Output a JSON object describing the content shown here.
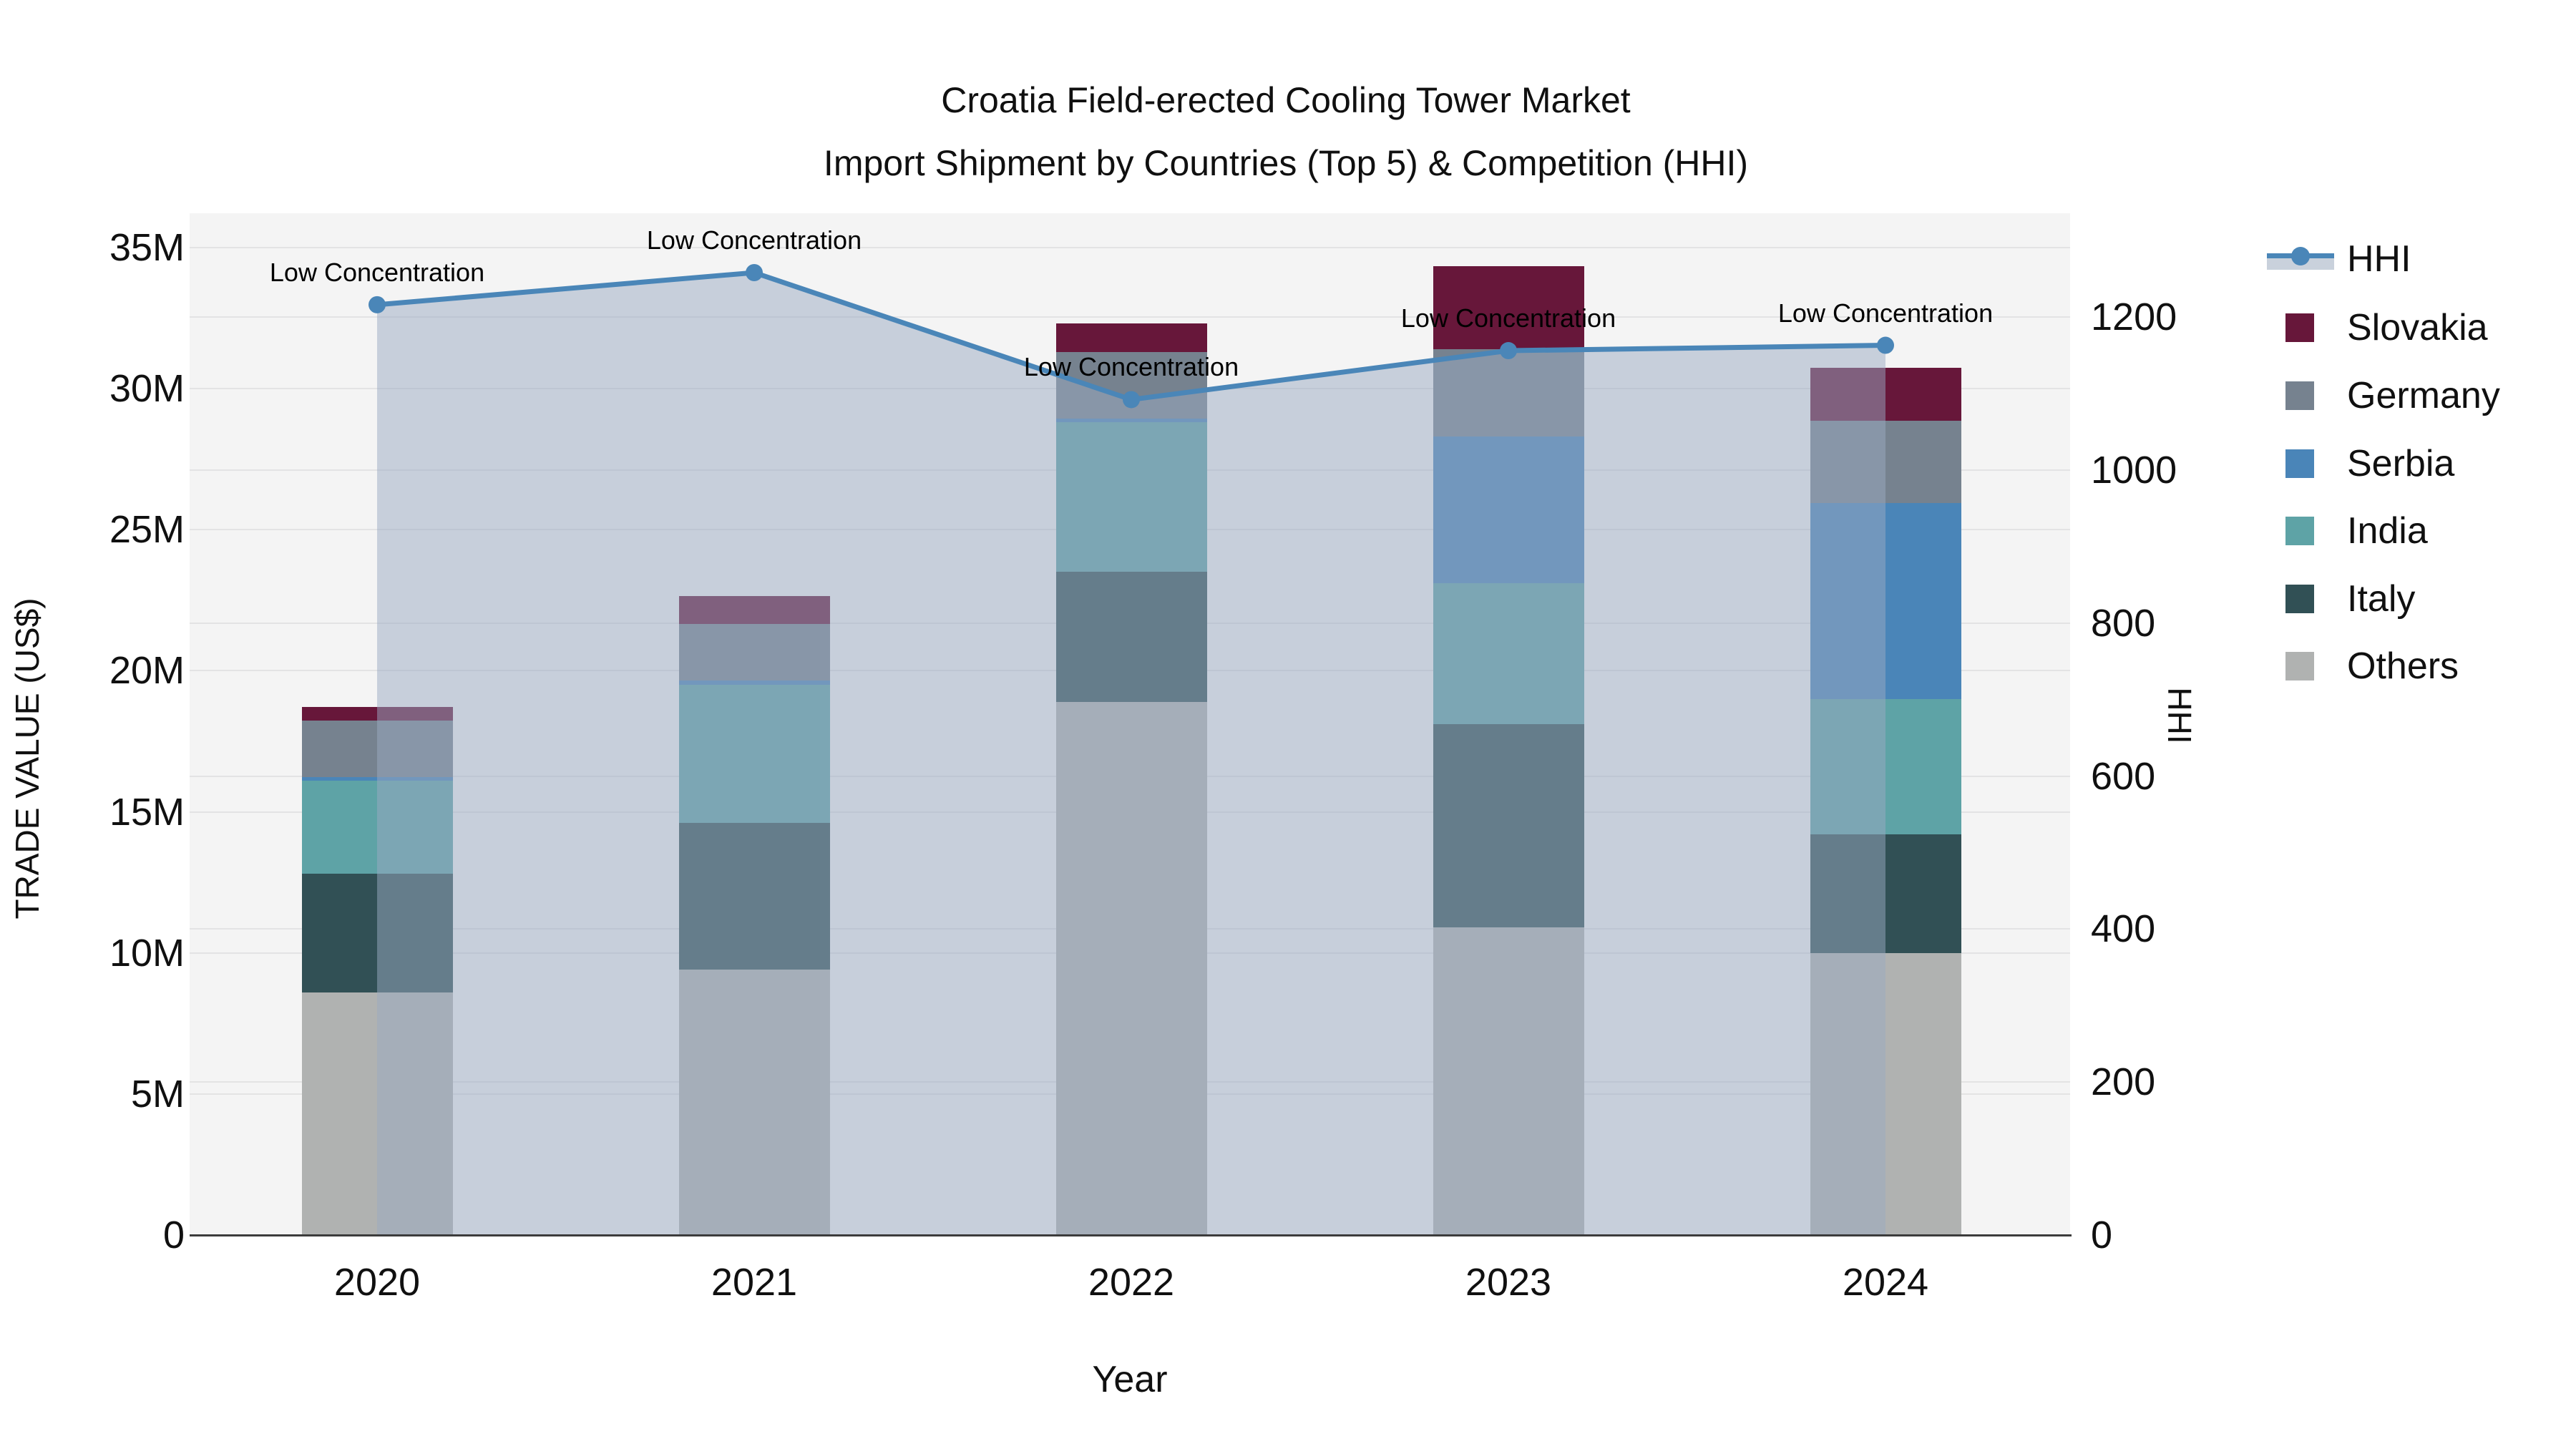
{
  "title": {
    "line1": "Croatia Field-erected Cooling Tower Market",
    "line2": "Import Shipment by Countries (Top 5) & Competition (HHI)"
  },
  "axes": {
    "x": {
      "title": "Year",
      "categories": [
        "2020",
        "2021",
        "2022",
        "2023",
        "2024"
      ]
    },
    "y_left": {
      "title": "TRADE VALUE (US$)",
      "tick_labels": [
        "0",
        "5M",
        "10M",
        "15M",
        "20M",
        "25M",
        "30M",
        "35M"
      ],
      "tick_values": [
        0,
        5,
        10,
        15,
        20,
        25,
        30,
        35
      ]
    },
    "y_right": {
      "title": "HHI",
      "tick_labels": [
        "0",
        "200",
        "400",
        "600",
        "800",
        "1000",
        "1200"
      ],
      "tick_values": [
        0,
        200,
        400,
        600,
        800,
        1000,
        1200
      ]
    }
  },
  "legend": {
    "items": [
      {
        "label": "HHI",
        "type": "line",
        "color": "#4A86B8"
      },
      {
        "label": "Slovakia",
        "type": "swatch",
        "color": "#67173A"
      },
      {
        "label": "Germany",
        "type": "swatch",
        "color": "#76828F"
      },
      {
        "label": "Serbia",
        "type": "swatch",
        "color": "#4A85B8"
      },
      {
        "label": "India",
        "type": "swatch",
        "color": "#5EA3A6"
      },
      {
        "label": "Italy",
        "type": "swatch",
        "color": "#315055"
      },
      {
        "label": "Others",
        "type": "swatch",
        "color": "#B0B2B1"
      }
    ]
  },
  "chart_data": {
    "type": "bar+line",
    "title": "Croatia Field-erected Cooling Tower Market — Import Shipment by Countries (Top 5) & Competition (HHI)",
    "categories": [
      "2020",
      "2021",
      "2022",
      "2023",
      "2024"
    ],
    "xlabel": "Year",
    "ylabel_left": "TRADE VALUE (US$)",
    "ylabel_right": "HHI",
    "bar_value_unit": "million US$",
    "ylim_left_m": [
      0,
      36.2
    ],
    "ylim_right_hhi": [
      0,
      1342
    ],
    "grid": true,
    "legend_position": "right",
    "stack_order_bottom_to_top": [
      "Others",
      "Italy",
      "India",
      "Serbia",
      "Germany",
      "Slovakia"
    ],
    "series": [
      {
        "name": "Others",
        "color": "#B0B2B1",
        "values": [
          8.6,
          9.4,
          18.9,
          10.9,
          10.0
        ]
      },
      {
        "name": "Italy",
        "color": "#315055",
        "values": [
          4.2,
          5.2,
          4.6,
          7.2,
          4.2
        ]
      },
      {
        "name": "India",
        "color": "#5EA3A6",
        "values": [
          3.3,
          4.9,
          5.3,
          5.0,
          4.8
        ]
      },
      {
        "name": "Serbia",
        "color": "#4A85B8",
        "values": [
          0.13,
          0.15,
          0.15,
          5.2,
          6.95
        ]
      },
      {
        "name": "Germany",
        "color": "#76828F",
        "values": [
          2.0,
          2.0,
          2.35,
          3.1,
          2.9
        ]
      },
      {
        "name": "Slovakia",
        "color": "#67173A",
        "values": [
          0.5,
          1.0,
          1.0,
          2.95,
          1.9
        ]
      }
    ],
    "bar_totals_m": [
      18.73,
      22.65,
      32.3,
      34.35,
      30.75
    ],
    "line_series": {
      "name": "HHI",
      "color": "#4A86B8",
      "area_fill": "rgba(154,170,194,0.5)",
      "values": [
        1216,
        1258,
        1092,
        1156,
        1163
      ],
      "point_annotations": [
        "Low Concentration",
        "Low Concentration",
        "Low Concentration",
        "Low Concentration",
        "Low Concentration"
      ]
    }
  }
}
